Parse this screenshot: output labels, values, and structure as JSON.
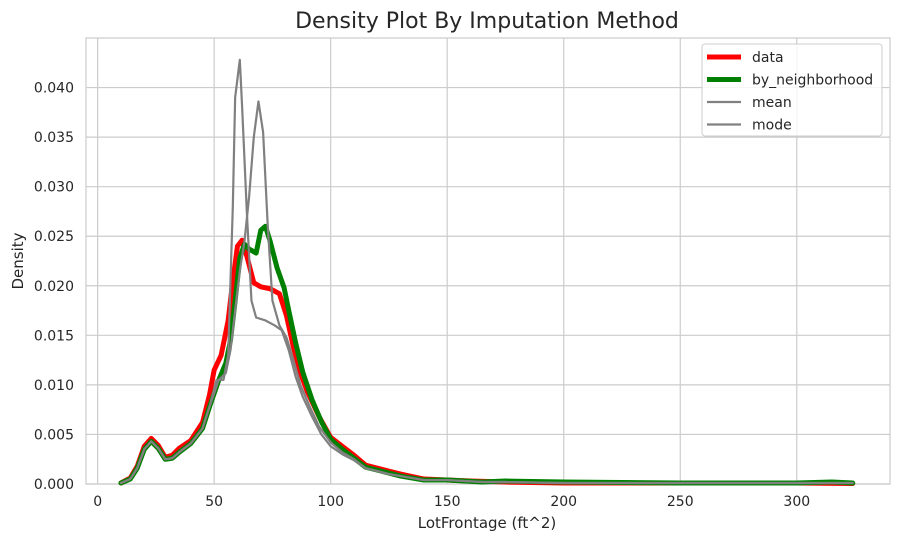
{
  "chart_data": {
    "type": "line",
    "title": "Density Plot By Imputation Method",
    "xlabel": "LotFrontage (ft^2)",
    "ylabel": "Density",
    "xlim": [
      -5,
      340
    ],
    "ylim": [
      0,
      0.045
    ],
    "xticks": [
      0,
      50,
      100,
      150,
      200,
      250,
      300
    ],
    "xtick_labels": [
      "0",
      "50",
      "100",
      "150",
      "200",
      "250",
      "300"
    ],
    "yticks": [
      0,
      0.005,
      0.01,
      0.015,
      0.02,
      0.025,
      0.03,
      0.035,
      0.04
    ],
    "ytick_labels": [
      "0.000",
      "0.005",
      "0.010",
      "0.015",
      "0.020",
      "0.025",
      "0.030",
      "0.035",
      "0.040"
    ],
    "grid": true,
    "legend_position": "top-right",
    "series": [
      {
        "name": "data",
        "color": "#ff0000",
        "points": [
          [
            10,
            0.0001
          ],
          [
            14,
            0.0006
          ],
          [
            17,
            0.0018
          ],
          [
            20,
            0.0038
          ],
          [
            23,
            0.0046
          ],
          [
            26,
            0.0039
          ],
          [
            29,
            0.0027
          ],
          [
            32,
            0.0029
          ],
          [
            35,
            0.0036
          ],
          [
            40,
            0.0044
          ],
          [
            45,
            0.0062
          ],
          [
            48,
            0.009
          ],
          [
            50,
            0.0115
          ],
          [
            53,
            0.013
          ],
          [
            56,
            0.0165
          ],
          [
            58,
            0.0205
          ],
          [
            60,
            0.024
          ],
          [
            62,
            0.0246
          ],
          [
            64,
            0.023
          ],
          [
            67,
            0.0203
          ],
          [
            70,
            0.0199
          ],
          [
            74,
            0.0197
          ],
          [
            78,
            0.0192
          ],
          [
            81,
            0.017
          ],
          [
            84,
            0.0138
          ],
          [
            87,
            0.0112
          ],
          [
            90,
            0.0093
          ],
          [
            95,
            0.0068
          ],
          [
            100,
            0.0047
          ],
          [
            105,
            0.0038
          ],
          [
            110,
            0.0029
          ],
          [
            115,
            0.0019
          ],
          [
            120,
            0.0016
          ],
          [
            125,
            0.0013
          ],
          [
            130,
            0.001
          ],
          [
            140,
            0.0005
          ],
          [
            150,
            0.0004
          ],
          [
            160,
            0.0003
          ],
          [
            175,
            0.0002
          ],
          [
            200,
            0.0001
          ],
          [
            250,
            0.0001
          ],
          [
            300,
            0.0001
          ],
          [
            324,
            5e-05
          ]
        ]
      },
      {
        "name": "by_neighborhood",
        "color": "#008000",
        "points": [
          [
            10,
            0.0001
          ],
          [
            14,
            0.0005
          ],
          [
            17,
            0.0016
          ],
          [
            20,
            0.0035
          ],
          [
            23,
            0.0043
          ],
          [
            26,
            0.0036
          ],
          [
            29,
            0.0025
          ],
          [
            32,
            0.0026
          ],
          [
            35,
            0.0032
          ],
          [
            40,
            0.0041
          ],
          [
            45,
            0.0056
          ],
          [
            48,
            0.0078
          ],
          [
            52,
            0.0105
          ],
          [
            55,
            0.0122
          ],
          [
            57,
            0.0145
          ],
          [
            59,
            0.0185
          ],
          [
            61,
            0.0228
          ],
          [
            63,
            0.0242
          ],
          [
            65,
            0.0237
          ],
          [
            68,
            0.0233
          ],
          [
            70,
            0.0256
          ],
          [
            72,
            0.026
          ],
          [
            74,
            0.0245
          ],
          [
            77,
            0.0218
          ],
          [
            80,
            0.0198
          ],
          [
            82,
            0.0175
          ],
          [
            85,
            0.0142
          ],
          [
            88,
            0.0113
          ],
          [
            92,
            0.0085
          ],
          [
            96,
            0.0063
          ],
          [
            100,
            0.0045
          ],
          [
            105,
            0.0035
          ],
          [
            110,
            0.0026
          ],
          [
            115,
            0.0017
          ],
          [
            120,
            0.0014
          ],
          [
            125,
            0.0011
          ],
          [
            130,
            0.0008
          ],
          [
            140,
            0.0004
          ],
          [
            150,
            0.0004
          ],
          [
            165,
            0.0002
          ],
          [
            175,
            0.0003
          ],
          [
            200,
            0.0002
          ],
          [
            250,
            0.0001
          ],
          [
            300,
            0.0001
          ],
          [
            315,
            0.0002
          ],
          [
            324,
            0.0001
          ]
        ]
      },
      {
        "name": "mean",
        "color": "#808080",
        "points": [
          [
            10,
            0.0001
          ],
          [
            14,
            0.0005
          ],
          [
            17,
            0.0016
          ],
          [
            20,
            0.0035
          ],
          [
            23,
            0.0043
          ],
          [
            26,
            0.0036
          ],
          [
            29,
            0.0025
          ],
          [
            32,
            0.0026
          ],
          [
            35,
            0.0032
          ],
          [
            40,
            0.0041
          ],
          [
            45,
            0.0056
          ],
          [
            48,
            0.0078
          ],
          [
            51,
            0.0105
          ],
          [
            54,
            0.0105
          ],
          [
            56,
            0.013
          ],
          [
            58,
            0.028
          ],
          [
            59,
            0.039
          ],
          [
            61,
            0.0428
          ],
          [
            62,
            0.038
          ],
          [
            64,
            0.0275
          ],
          [
            66,
            0.0185
          ],
          [
            68,
            0.0168
          ],
          [
            72,
            0.0165
          ],
          [
            76,
            0.016
          ],
          [
            79,
            0.0155
          ],
          [
            82,
            0.0135
          ],
          [
            85,
            0.0108
          ],
          [
            88,
            0.0088
          ],
          [
            92,
            0.0068
          ],
          [
            96,
            0.005
          ],
          [
            100,
            0.0038
          ],
          [
            105,
            0.003
          ],
          [
            110,
            0.0024
          ],
          [
            115,
            0.0016
          ],
          [
            120,
            0.0013
          ],
          [
            125,
            0.001
          ],
          [
            130,
            0.0008
          ],
          [
            140,
            0.0004
          ],
          [
            150,
            0.0004
          ],
          [
            165,
            0.0002
          ],
          [
            175,
            0.0002
          ],
          [
            200,
            0.0001
          ],
          [
            250,
            0.0001
          ],
          [
            300,
            0.0001
          ],
          [
            315,
            0.0001
          ],
          [
            324,
            0.0001
          ]
        ]
      },
      {
        "name": "mode",
        "color": "#808080",
        "points": [
          [
            10,
            0.0001
          ],
          [
            14,
            0.0005
          ],
          [
            17,
            0.0016
          ],
          [
            20,
            0.0035
          ],
          [
            23,
            0.0043
          ],
          [
            26,
            0.0036
          ],
          [
            29,
            0.0025
          ],
          [
            32,
            0.0026
          ],
          [
            35,
            0.0032
          ],
          [
            40,
            0.0041
          ],
          [
            45,
            0.0056
          ],
          [
            48,
            0.0078
          ],
          [
            52,
            0.0105
          ],
          [
            55,
            0.0112
          ],
          [
            57,
            0.0135
          ],
          [
            59,
            0.0175
          ],
          [
            61,
            0.0215
          ],
          [
            63,
            0.0245
          ],
          [
            65,
            0.029
          ],
          [
            67,
            0.035
          ],
          [
            69,
            0.0386
          ],
          [
            71,
            0.0355
          ],
          [
            73,
            0.026
          ],
          [
            75,
            0.0185
          ],
          [
            78,
            0.016
          ],
          [
            81,
            0.0148
          ],
          [
            84,
            0.0125
          ],
          [
            87,
            0.01
          ],
          [
            91,
            0.0078
          ],
          [
            95,
            0.0058
          ],
          [
            100,
            0.0042
          ],
          [
            105,
            0.0032
          ],
          [
            110,
            0.0025
          ],
          [
            115,
            0.0016
          ],
          [
            120,
            0.0013
          ],
          [
            125,
            0.001
          ],
          [
            130,
            0.0008
          ],
          [
            140,
            0.0004
          ],
          [
            150,
            0.0004
          ],
          [
            165,
            0.0002
          ],
          [
            175,
            0.0002
          ],
          [
            200,
            0.0001
          ],
          [
            250,
            0.0001
          ],
          [
            300,
            0.0001
          ],
          [
            315,
            0.0001
          ],
          [
            324,
            0.0001
          ]
        ]
      }
    ]
  }
}
